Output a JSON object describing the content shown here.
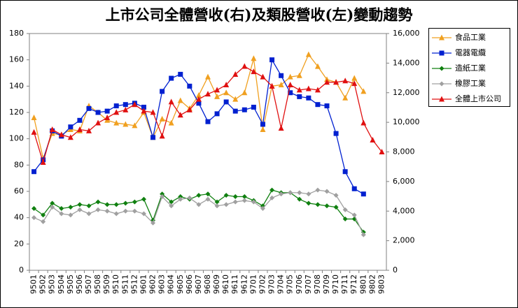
{
  "chart_data": {
    "type": "line",
    "title": "上市公司全體營收(右)及類股營收(左)變動趨勢",
    "categories": [
      "9501",
      "9502",
      "9503",
      "9504",
      "9505",
      "9506",
      "9507",
      "9508",
      "9509",
      "9510",
      "9511",
      "9512",
      "9601",
      "9602",
      "9603",
      "9604",
      "9605",
      "9606",
      "9607",
      "9608",
      "9609",
      "9610",
      "9611",
      "9612",
      "9701",
      "9702",
      "9703",
      "9704",
      "9705",
      "9706",
      "9707",
      "9708",
      "9709",
      "9710",
      "9711",
      "9712",
      "9801",
      "9802",
      "9803"
    ],
    "series": [
      {
        "name": "食品工業",
        "color": "#f0a020",
        "marker": "triangle",
        "values": [
          116,
          85,
          104,
          103,
          107,
          106,
          125,
          120,
          114,
          112,
          111,
          110,
          120,
          101,
          115,
          112,
          129,
          123,
          133,
          147,
          132,
          135,
          130,
          135,
          161,
          107,
          140,
          141,
          147,
          148,
          164,
          155,
          145,
          143,
          131,
          146,
          136,
          null,
          null
        ]
      },
      {
        "name": "電器電纜",
        "color": "#0020d0",
        "marker": "square",
        "values": [
          75,
          84,
          106,
          102,
          109,
          114,
          123,
          120,
          121,
          125,
          126,
          127,
          124,
          101,
          136,
          146,
          149,
          140,
          127,
          113,
          119,
          128,
          121,
          122,
          124,
          111,
          160,
          148,
          135,
          132,
          131,
          126,
          125,
          104,
          75,
          62,
          58,
          null,
          null
        ]
      },
      {
        "name": "造紙工業",
        "color": "#108010",
        "marker": "diamond",
        "values": [
          47,
          42,
          51,
          47,
          48,
          50,
          49,
          52,
          50,
          50,
          51,
          52,
          54,
          38,
          58,
          52,
          56,
          54,
          57,
          58,
          52,
          57,
          56,
          56,
          53,
          49,
          61,
          59,
          59,
          54,
          51,
          50,
          49,
          48,
          39,
          39,
          29,
          null,
          null
        ]
      },
      {
        "name": "橡膠工業",
        "color": "#a0a0a0",
        "marker": "diamond",
        "values": [
          40,
          37,
          48,
          43,
          42,
          46,
          43,
          46,
          45,
          43,
          45,
          45,
          43,
          36,
          56,
          49,
          54,
          55,
          50,
          54,
          49,
          50,
          52,
          53,
          52,
          47,
          55,
          58,
          59,
          59,
          58,
          61,
          60,
          57,
          46,
          42,
          27,
          null,
          null
        ]
      },
      {
        "name": "全體上市公司",
        "color": "#e01010",
        "marker": "triangle",
        "axis": "y2",
        "values": [
          9330,
          7290,
          9510,
          9160,
          8980,
          9510,
          9420,
          9960,
          10310,
          10670,
          10840,
          11200,
          10760,
          10670,
          9070,
          11380,
          10490,
          10840,
          11560,
          11910,
          12180,
          12530,
          13240,
          13780,
          13420,
          13070,
          12440,
          9600,
          12530,
          12180,
          12270,
          12180,
          12710,
          12710,
          12800,
          12620,
          9960,
          8800,
          8000
        ]
      }
    ],
    "ylim": [
      0,
      180
    ],
    "yticks": [
      0,
      20,
      40,
      60,
      80,
      100,
      120,
      140,
      160,
      180
    ],
    "y2lim": [
      0,
      16000
    ],
    "y2ticks": [
      0,
      {
        "value": 2000,
        "label": "2,000"
      },
      {
        "value": 4000,
        "label": "4,000"
      },
      {
        "value": 6000,
        "label": "6,000"
      },
      {
        "value": 8000,
        "label": "8,000"
      },
      {
        "value": 10000,
        "label": "10,000"
      },
      {
        "value": 12000,
        "label": "12,000"
      },
      {
        "value": 14000,
        "label": "14,000"
      },
      {
        "value": 16000,
        "label": "16,000"
      }
    ],
    "legend": "right"
  }
}
